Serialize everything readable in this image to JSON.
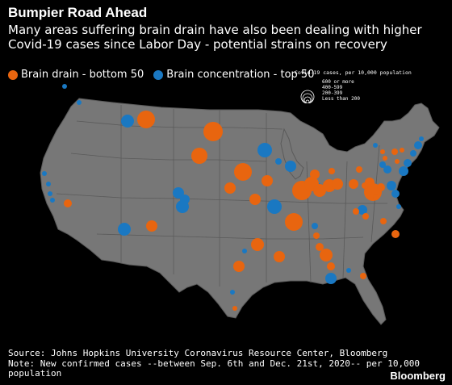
{
  "title": "Bumpier Road Ahead",
  "subtitle": "Many areas suffering brain drain have also been dealing with higher Covid-19 cases since Labor Day - potential strains on recovery",
  "legend": {
    "drain_label": "Brain drain - bottom 50",
    "concentration_label": "Brain concentration - top 50",
    "drain_color": "#e8650f",
    "concentration_color": "#1a78c2"
  },
  "size_legend": {
    "title": "Covid-19 cases, per 10,000 population",
    "bins": [
      "600 or more",
      "400-599",
      "200-399",
      "Less than 200"
    ]
  },
  "map_colors": {
    "land": "#777777",
    "border": "#5a5a5a"
  },
  "footer": {
    "source": "Source: Johns Hopkins University Coronavirus Resource Center, Bloomberg",
    "note_line1": "Note: New confirmed cases --between Sep. 6th and Dec. 21st, 2020-- per 10,000",
    "note_line2": "population"
  },
  "brand": "Bloomberg"
}
